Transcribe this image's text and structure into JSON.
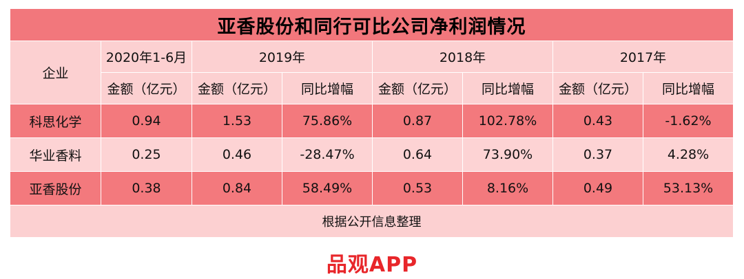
{
  "chart_data": {
    "type": "table",
    "title": "亚香股份和同行可比公司净利润情况",
    "header": {
      "company": "企业",
      "periods": [
        "2020年1-6月",
        "2019年",
        "2018年",
        "2017年"
      ],
      "amount": "金额（亿元）",
      "growth": "同比增幅"
    },
    "rows": [
      {
        "company": "科思化学",
        "h1_2020": "0.94",
        "y2019": "1.53",
        "y2019_growth": "75.86%",
        "y2018": "0.87",
        "y2018_growth": "102.78%",
        "y2017": "0.43",
        "y2017_growth": "-1.62%"
      },
      {
        "company": "华业香料",
        "h1_2020": "0.25",
        "y2019": "0.46",
        "y2019_growth": "-28.47%",
        "y2018": "0.64",
        "y2018_growth": "73.90%",
        "y2017": "0.37",
        "y2017_growth": "4.28%"
      },
      {
        "company": "亚香股份",
        "h1_2020": "0.38",
        "y2019": "0.84",
        "y2019_growth": "58.49%",
        "y2018": "0.53",
        "y2018_growth": "8.16%",
        "y2017": "0.49",
        "y2017_growth": "53.13%"
      }
    ],
    "source": "根据公开信息整理"
  },
  "brand": "品观APP",
  "colors": {
    "title_bg": "#f2777c",
    "dark_row": "#f3797d",
    "light_row": "#fdd3d4",
    "brand": "#e8262a"
  }
}
